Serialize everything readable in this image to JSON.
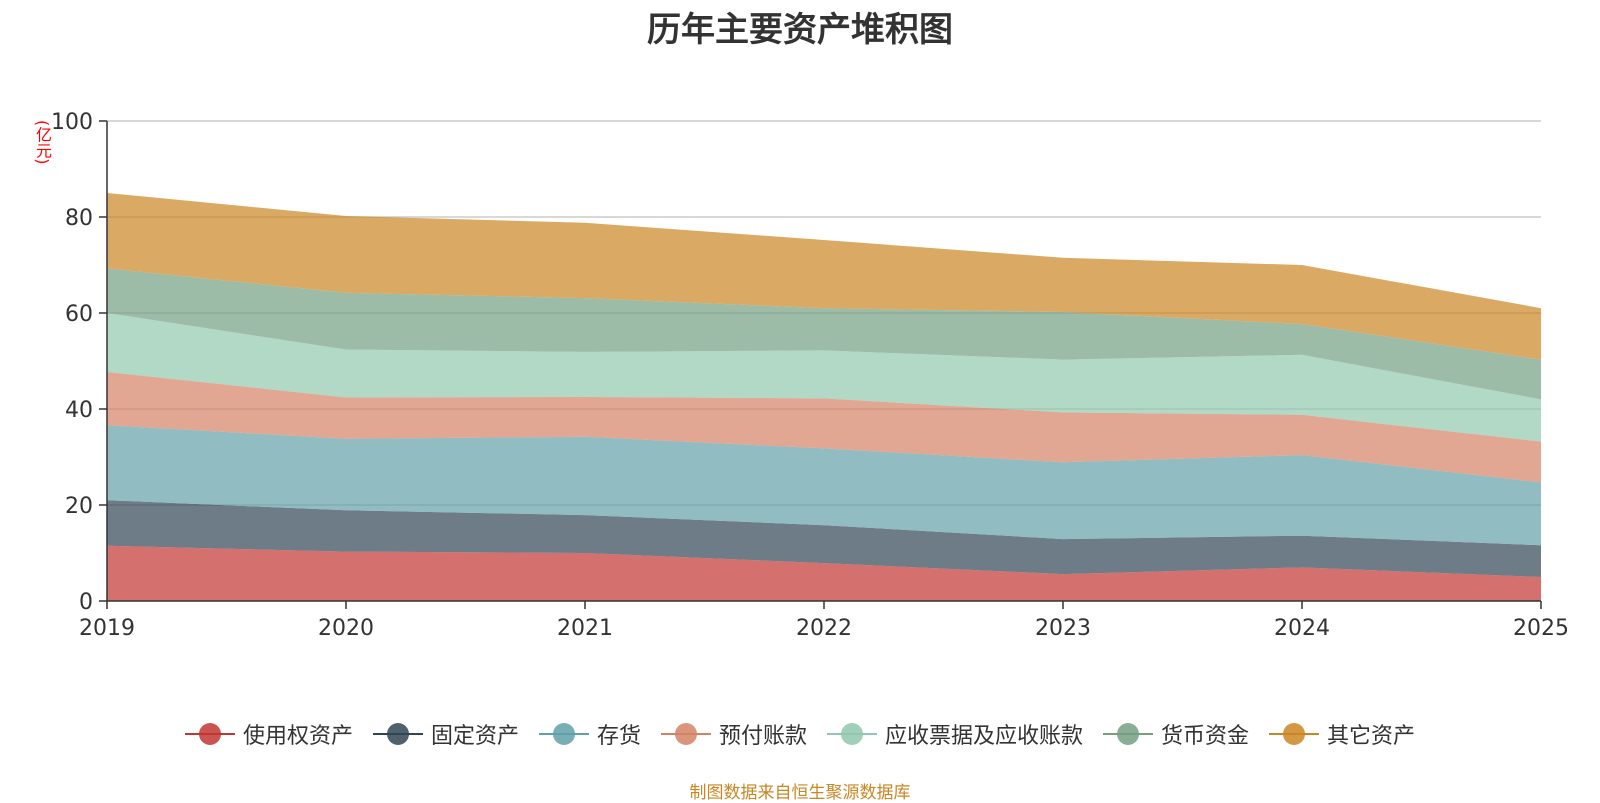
{
  "chart_data": {
    "type": "area",
    "stacked": true,
    "title": "历年主要资产堆积图",
    "y_unit": "(亿元)",
    "x": [
      "2019",
      "2020",
      "2021",
      "2022",
      "2023",
      "2024",
      "2025"
    ],
    "ylim": [
      0,
      100
    ],
    "yticks": [
      "0",
      "20",
      "40",
      "60",
      "80",
      "100"
    ],
    "grid": true,
    "legend_position": "bottom",
    "series": [
      {
        "name": "使用权资产",
        "color": "#c23531",
        "values": [
          11.5,
          10.3,
          10.0,
          7.9,
          5.6,
          7.0,
          5.0
        ]
      },
      {
        "name": "固定资产",
        "color": "#2f4554",
        "values": [
          9.5,
          8.6,
          7.9,
          7.9,
          7.3,
          6.6,
          6.6
        ]
      },
      {
        "name": "存货",
        "color": "#61a0a8",
        "values": [
          15.6,
          14.9,
          16.3,
          16.0,
          16.0,
          16.8,
          13.1
        ]
      },
      {
        "name": "预付账款",
        "color": "#d48265",
        "values": [
          11.1,
          8.6,
          8.3,
          10.4,
          10.4,
          8.4,
          8.5
        ]
      },
      {
        "name": "应收票据及应收账款",
        "color": "#91c7ae",
        "values": [
          12.3,
          10.0,
          9.4,
          10.0,
          11.0,
          12.5,
          8.8
        ]
      },
      {
        "name": "货币资金",
        "color": "#749f83",
        "values": [
          9.3,
          11.8,
          11.2,
          8.8,
          9.9,
          6.4,
          8.3
        ]
      },
      {
        "name": "其它资产",
        "color": "#ca8622",
        "values": [
          15.7,
          16.0,
          15.7,
          14.2,
          11.3,
          12.3,
          10.7
        ]
      }
    ],
    "source_note": "制图数据来自恒生聚源数据库",
    "source_note_color": "#ca8622"
  }
}
